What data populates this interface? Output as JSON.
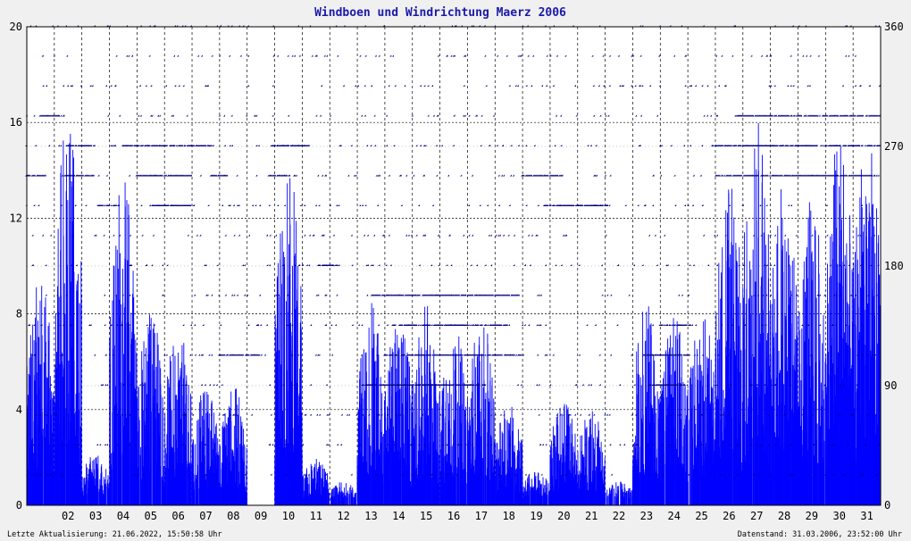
{
  "chart_data": {
    "type": "bar+scatter",
    "title": "Windboen und Windrichtung Maerz 2006",
    "footer_left": "Letzte Aktualisierung: 21.06.2022, 15:50:58 Uhr",
    "footer_right": "Datenstand: 31.03.2006, 23:52:00 Uhr",
    "x_range": [
      1,
      32
    ],
    "x_tick_labels": [
      "02",
      "03",
      "04",
      "05",
      "06",
      "07",
      "08",
      "09",
      "10",
      "11",
      "12",
      "13",
      "14",
      "15",
      "16",
      "17",
      "18",
      "19",
      "20",
      "21",
      "22",
      "23",
      "24",
      "25",
      "26",
      "27",
      "28",
      "29",
      "30",
      "31"
    ],
    "y_left": {
      "range": [
        0,
        20
      ],
      "ticks": [
        0,
        4,
        8,
        12,
        16,
        20
      ]
    },
    "y_right": {
      "range": [
        0,
        360
      ],
      "ticks": [
        0,
        90,
        180,
        270,
        360
      ]
    },
    "grid": true,
    "colors": {
      "gust_bars": "#0000ff",
      "direction_points": "#000080",
      "grid": "#000000",
      "background": "#ffffff"
    },
    "series": [
      {
        "type": "bar",
        "axis": "left",
        "daily_gust_profile": [
          {
            "day": 1,
            "max": 9.6
          },
          {
            "day": 2,
            "max": 16.6
          },
          {
            "day": 3,
            "max": 2.2
          },
          {
            "day": 4,
            "max": 14.4
          },
          {
            "day": 5,
            "max": 8.4
          },
          {
            "day": 6,
            "max": 7.5
          },
          {
            "day": 7,
            "max": 5.0
          },
          {
            "day": 8,
            "max": 5.0
          },
          {
            "day": 9,
            "max": 0.0
          },
          {
            "day": 10,
            "max": 14.4
          },
          {
            "day": 11,
            "max": 2.0
          },
          {
            "day": 12,
            "max": 1.0
          },
          {
            "day": 13,
            "max": 8.5
          },
          {
            "day": 14,
            "max": 8.0
          },
          {
            "day": 15,
            "max": 8.4
          },
          {
            "day": 16,
            "max": 7.6
          },
          {
            "day": 17,
            "max": 8.0
          },
          {
            "day": 18,
            "max": 4.5
          },
          {
            "day": 19,
            "max": 1.5
          },
          {
            "day": 20,
            "max": 4.5
          },
          {
            "day": 21,
            "max": 4.0
          },
          {
            "day": 22,
            "max": 1.0
          },
          {
            "day": 23,
            "max": 8.6
          },
          {
            "day": 24,
            "max": 8.0
          },
          {
            "day": 25,
            "max": 8.4
          },
          {
            "day": 26,
            "max": 14.4
          },
          {
            "day": 27,
            "max": 17.3
          },
          {
            "day": 28,
            "max": 14.0
          },
          {
            "day": 29,
            "max": 13.0
          },
          {
            "day": 30,
            "max": 16.3
          },
          {
            "day": 31,
            "max": 16.4
          }
        ]
      },
      {
        "type": "scatter",
        "axis": "right",
        "direction_levels": [
          0,
          22.5,
          45,
          67.5,
          90,
          112.5,
          135,
          157.5,
          180,
          202.5,
          225,
          247.5,
          270,
          292.5,
          315,
          337.5,
          360
        ],
        "dense_runs": [
          {
            "level": 247.5,
            "from": 1.0,
            "to": 1.7
          },
          {
            "level": 292.5,
            "from": 1.5,
            "to": 2.4
          },
          {
            "level": 247.5,
            "from": 2.4,
            "to": 3.5
          },
          {
            "level": 270,
            "from": 2.5,
            "to": 3.5
          },
          {
            "level": 225,
            "from": 3.6,
            "to": 4.4
          },
          {
            "level": 270,
            "from": 4.5,
            "to": 7.8
          },
          {
            "level": 247.5,
            "from": 5.0,
            "to": 7.0
          },
          {
            "level": 225,
            "from": 5.5,
            "to": 7.0
          },
          {
            "level": 247.5,
            "from": 7.7,
            "to": 8.3
          },
          {
            "level": 112.5,
            "from": 8.0,
            "to": 9.5
          },
          {
            "level": 270,
            "from": 9.9,
            "to": 11.3
          },
          {
            "level": 247.5,
            "from": 9.8,
            "to": 10.6
          },
          {
            "level": 180,
            "from": 11.6,
            "to": 12.4
          },
          {
            "level": 90,
            "from": 13.2,
            "to": 15.8
          },
          {
            "level": 112.5,
            "from": 14.0,
            "to": 19.0
          },
          {
            "level": 135,
            "from": 14.3,
            "to": 18.5
          },
          {
            "level": 157.5,
            "from": 13.5,
            "to": 18.9
          },
          {
            "level": 90,
            "from": 15.5,
            "to": 17.7
          },
          {
            "level": 247.5,
            "from": 19.0,
            "to": 20.5
          },
          {
            "level": 225,
            "from": 19.8,
            "to": 22.2
          },
          {
            "level": 112.5,
            "from": 23.4,
            "to": 25.1
          },
          {
            "level": 90,
            "from": 23.6,
            "to": 24.9
          },
          {
            "level": 135,
            "from": 24.0,
            "to": 25.2
          },
          {
            "level": 270,
            "from": 25.9,
            "to": 32.0
          },
          {
            "level": 247.5,
            "from": 26.0,
            "to": 32.0
          },
          {
            "level": 292.5,
            "from": 26.8,
            "to": 32.0
          }
        ]
      }
    ]
  }
}
